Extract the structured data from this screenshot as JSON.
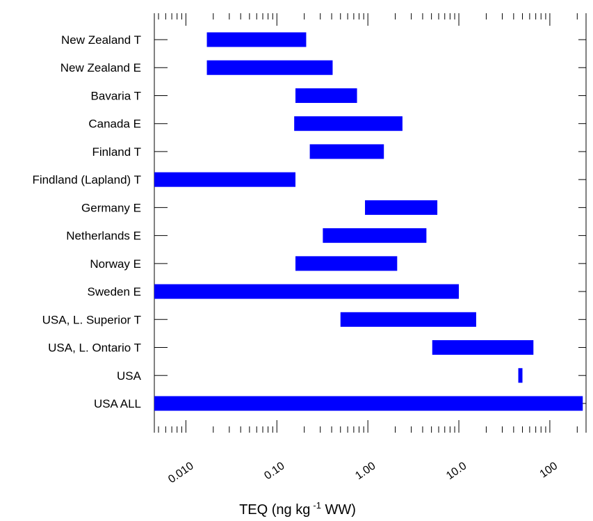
{
  "chart_data": {
    "type": "bar",
    "orientation": "horizontal",
    "x_scale": "log",
    "xlim": [
      0.0045,
      250
    ],
    "xlabel": {
      "prefix": "TEQ (ng kg",
      "superscript": "-1",
      "suffix": " WW)"
    },
    "x_ticks": [
      {
        "value": 0.01,
        "label": "0.010"
      },
      {
        "value": 0.1,
        "label": "0.10"
      },
      {
        "value": 1,
        "label": "1.00"
      },
      {
        "value": 10,
        "label": "10.0"
      },
      {
        "value": 100,
        "label": "100"
      }
    ],
    "grid": false,
    "legend": "none",
    "bar_color": "#0000ff",
    "categories": [
      "New Zealand T",
      "New Zealand E",
      "Bavaria T",
      "Canada E",
      "Finland T",
      "Findland (Lapland) T",
      "Germany E",
      "Netherlands E",
      "Norway E",
      "Sweden E",
      "USA, L. Superior T",
      "USA, L. Ontario T",
      "USA",
      "USA ALL"
    ],
    "ranges": [
      [
        0.017,
        0.21
      ],
      [
        0.017,
        0.41
      ],
      [
        0.16,
        0.76
      ],
      [
        0.155,
        2.4
      ],
      [
        0.23,
        1.5
      ],
      [
        0.0045,
        0.16
      ],
      [
        0.93,
        5.8
      ],
      [
        0.32,
        4.4
      ],
      [
        0.16,
        2.1
      ],
      [
        0.0045,
        10
      ],
      [
        0.5,
        15.5
      ],
      [
        5.1,
        66
      ],
      [
        45,
        50
      ],
      [
        0.0045,
        230
      ]
    ]
  }
}
